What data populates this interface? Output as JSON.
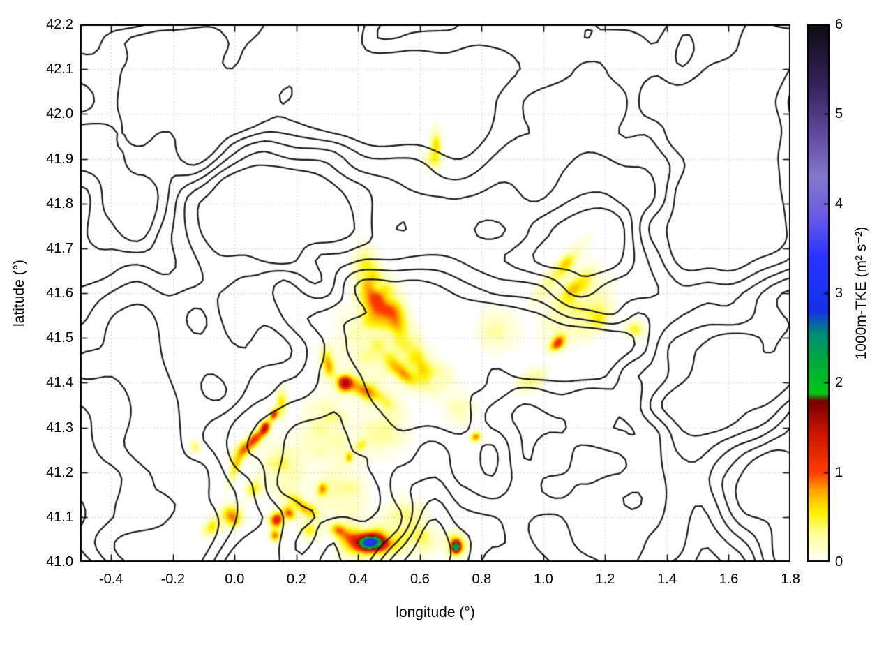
{
  "chart_data": {
    "type": "heatmap",
    "title": "",
    "xlabel": "longitude (°)",
    "ylabel": "latitude (°)",
    "colorbar_label": "1000m-TKE (m² s⁻²)",
    "xlim": [
      -0.5,
      1.8
    ],
    "ylim": [
      41.0,
      42.2
    ],
    "colorbar_range": [
      0,
      6
    ],
    "grid": true,
    "xticks": {
      "values": [
        -0.4,
        -0.2,
        0.0,
        0.2,
        0.4,
        0.6,
        0.8,
        1.0,
        1.2,
        1.4,
        1.6,
        1.8
      ],
      "labels": [
        "-0.4",
        "-0.2",
        "0.0",
        "0.2",
        "0.4",
        "0.6",
        "0.8",
        "1.0",
        "1.2",
        "1.4",
        "1.6",
        "1.8"
      ]
    },
    "yticks": {
      "values": [
        41.0,
        41.1,
        41.2,
        41.3,
        41.4,
        41.5,
        41.6,
        41.7,
        41.8,
        41.9,
        42.0,
        42.1,
        42.2
      ],
      "labels": [
        "41.0",
        "41.1",
        "41.2",
        "41.3",
        "41.4",
        "41.5",
        "41.6",
        "41.7",
        "41.8",
        "41.9",
        "42.0",
        "42.1",
        "42.2"
      ]
    },
    "colorbar_ticks": {
      "values": [
        0,
        1,
        2,
        3,
        4,
        5,
        6
      ],
      "labels": [
        "0",
        "1",
        "2",
        "3",
        "4",
        "5",
        "6"
      ]
    },
    "palette_stops": [
      [
        0.0,
        "#ffffff"
      ],
      [
        0.3,
        "#ffffa0"
      ],
      [
        0.55,
        "#fff200"
      ],
      [
        0.8,
        "#ffa400"
      ],
      [
        1.0,
        "#ff3c00"
      ],
      [
        1.45,
        "#c81400"
      ],
      [
        1.8,
        "#780000"
      ],
      [
        1.88,
        "#00c814"
      ],
      [
        2.25,
        "#00aa3c"
      ],
      [
        2.55,
        "#008c78"
      ],
      [
        2.8,
        "#1432e6"
      ],
      [
        3.4,
        "#2832ff"
      ],
      [
        3.85,
        "#6a5ae6"
      ],
      [
        4.3,
        "#8478cc"
      ],
      [
        4.8,
        "#60489b"
      ],
      [
        5.3,
        "#37245f"
      ],
      [
        6.0,
        "#0d0b12"
      ]
    ],
    "contour_lines": {
      "color": "#1b1b1b",
      "width": 2.2,
      "levels": [
        0.36,
        0.44,
        0.52,
        0.6,
        0.68
      ]
    },
    "tke_hotspots_format": [
      "lon_deg",
      "lat_deg",
      "peak_tke_m2s2",
      "sigma_lon_deg",
      "sigma_lat_deg",
      "rotation_deg"
    ],
    "tke_hotspots": [
      [
        0.435,
        41.045,
        2.1,
        0.022,
        0.01,
        5
      ],
      [
        0.435,
        41.045,
        0.9,
        0.055,
        0.022,
        5
      ],
      [
        0.475,
        41.04,
        0.8,
        0.03,
        0.012,
        0
      ],
      [
        0.38,
        41.055,
        0.7,
        0.025,
        0.012,
        -10
      ],
      [
        0.715,
        41.035,
        2.0,
        0.01,
        0.009,
        0
      ],
      [
        0.715,
        41.04,
        0.7,
        0.022,
        0.018,
        0
      ],
      [
        0.095,
        41.3,
        1.4,
        0.013,
        0.009,
        40
      ],
      [
        0.125,
        41.33,
        1.2,
        0.011,
        0.008,
        40
      ],
      [
        0.06,
        41.275,
        0.9,
        0.022,
        0.011,
        35
      ],
      [
        0.02,
        41.25,
        0.6,
        0.025,
        0.012,
        30
      ],
      [
        0.15,
        41.36,
        0.7,
        0.012,
        0.02,
        0
      ],
      [
        0.135,
        41.095,
        1.4,
        0.016,
        0.012,
        0
      ],
      [
        0.175,
        41.11,
        1.0,
        0.015,
        0.01,
        -20
      ],
      [
        0.22,
        41.125,
        0.7,
        0.035,
        0.012,
        -25
      ],
      [
        -0.01,
        41.105,
        0.9,
        0.022,
        0.016,
        0
      ],
      [
        -0.075,
        41.08,
        0.6,
        0.02,
        0.012,
        20
      ],
      [
        0.065,
        41.165,
        0.6,
        0.018,
        0.012,
        10
      ],
      [
        0.0,
        41.21,
        0.5,
        0.028,
        0.01,
        60
      ],
      [
        0.28,
        41.165,
        0.9,
        0.012,
        0.01,
        0
      ],
      [
        0.33,
        41.075,
        0.8,
        0.02,
        0.011,
        0
      ],
      [
        0.13,
        41.06,
        0.9,
        0.012,
        0.009,
        0
      ],
      [
        0.24,
        41.07,
        0.5,
        0.02,
        0.012,
        0
      ],
      [
        0.355,
        41.4,
        1.3,
        0.016,
        0.011,
        0
      ],
      [
        0.42,
        41.385,
        0.8,
        0.05,
        0.014,
        -20
      ],
      [
        0.54,
        41.425,
        0.7,
        0.03,
        0.012,
        -30
      ],
      [
        0.3,
        41.445,
        0.7,
        0.014,
        0.022,
        15
      ],
      [
        0.47,
        41.575,
        0.75,
        0.035,
        0.035,
        0
      ],
      [
        0.43,
        41.63,
        0.55,
        0.025,
        0.045,
        15
      ],
      [
        0.52,
        41.54,
        0.6,
        0.022,
        0.03,
        20
      ],
      [
        0.58,
        41.475,
        0.45,
        0.02,
        0.035,
        25
      ],
      [
        0.37,
        41.235,
        0.7,
        0.009,
        0.009,
        0
      ],
      [
        0.405,
        41.26,
        0.5,
        0.018,
        0.01,
        30
      ],
      [
        1.055,
        41.655,
        0.6,
        0.055,
        0.014,
        38
      ],
      [
        1.1,
        41.61,
        0.55,
        0.04,
        0.015,
        35
      ],
      [
        1.045,
        41.49,
        0.9,
        0.018,
        0.01,
        30
      ],
      [
        1.17,
        41.545,
        0.5,
        0.03,
        0.02,
        30
      ],
      [
        1.29,
        41.52,
        0.45,
        0.022,
        0.012,
        0
      ],
      [
        0.78,
        41.28,
        0.85,
        0.012,
        0.007,
        10
      ],
      [
        0.96,
        41.405,
        0.35,
        0.03,
        0.015,
        20
      ],
      [
        0.65,
        41.935,
        0.5,
        0.012,
        0.022,
        0
      ],
      [
        0.64,
        41.9,
        0.35,
        0.02,
        0.015,
        0
      ],
      [
        0.45,
        41.48,
        0.3,
        0.08,
        0.05,
        -10
      ],
      [
        0.62,
        41.42,
        0.35,
        0.06,
        0.025,
        -15
      ],
      [
        0.3,
        41.3,
        0.3,
        0.05,
        0.05,
        0
      ],
      [
        0.15,
        41.21,
        0.35,
        0.05,
        0.04,
        0
      ],
      [
        0.48,
        41.3,
        0.25,
        0.05,
        0.04,
        0
      ],
      [
        0.35,
        41.15,
        0.3,
        0.05,
        0.04,
        0
      ],
      [
        1.1,
        41.57,
        0.3,
        0.07,
        0.04,
        30
      ],
      [
        0.55,
        41.1,
        0.3,
        0.04,
        0.03,
        0
      ],
      [
        0.6,
        41.05,
        0.35,
        0.04,
        0.02,
        0
      ],
      [
        -0.13,
        41.26,
        0.4,
        0.012,
        0.01,
        0
      ],
      [
        0.85,
        41.52,
        0.25,
        0.04,
        0.03,
        0
      ],
      [
        0.73,
        41.34,
        0.25,
        0.03,
        0.02,
        0
      ]
    ]
  }
}
